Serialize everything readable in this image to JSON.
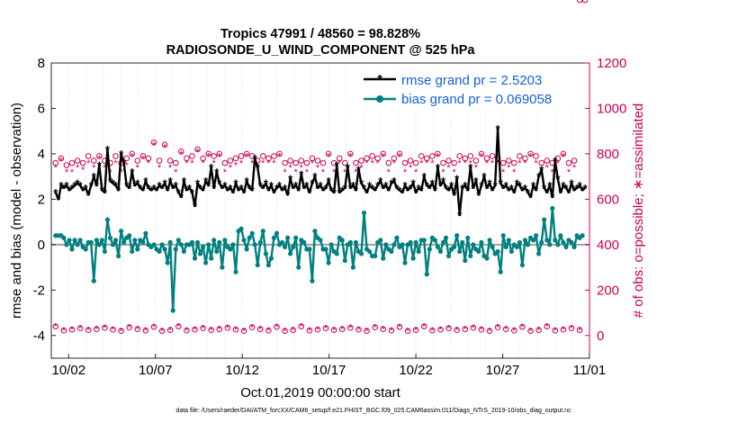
{
  "chart_data": {
    "type": "line",
    "title_line1": "Tropics 47991 / 48560 = 98.828%",
    "title_line2": "RADIOSONDE_U_WIND_COMPONENT @ 525 hPa",
    "xlabel": "Oct.01,2019 00:00:00 start",
    "ylabel_left": "rmse and bias (model - observation)",
    "ylabel_right": "# of obs: o=possible; ∗=assimilated",
    "footer": "data file: /Users/raeder/DAI/ATM_forcXX/CAM6_setup/f.e21.FHIST_BGC.f09_025.CAM6assim.011/Diags_NTrS_2019-10/obs_diag_output.nc",
    "x_range": [
      1,
      32
    ],
    "x_ticks": [
      {
        "v": 2,
        "label": "10/02"
      },
      {
        "v": 7,
        "label": "10/07"
      },
      {
        "v": 12,
        "label": "10/12"
      },
      {
        "v": 17,
        "label": "10/17"
      },
      {
        "v": 22,
        "label": "10/22"
      },
      {
        "v": 27,
        "label": "10/27"
      },
      {
        "v": 32,
        "label": "11/01"
      }
    ],
    "y_left_range": [
      -5,
      8
    ],
    "y_left_ticks": [
      -4,
      -2,
      0,
      2,
      4,
      6,
      8
    ],
    "y_right_range": [
      -100,
      1200
    ],
    "y_right_ticks": [
      0,
      200,
      400,
      600,
      800,
      1000,
      1200
    ],
    "legend": [
      {
        "label": "rmse grand pr = 2.5203",
        "color": "#000000"
      },
      {
        "label": "bias grand pr = 0.069058",
        "color": "#00807f"
      }
    ],
    "colors": {
      "rmse": "#000000",
      "bias": "#00807f",
      "obs": "#cc0052",
      "zero_line": "#a0a0a0",
      "legend_text": "#1660d8",
      "right_axis": "#cc0052"
    },
    "rmse": [
      2.3,
      2.0,
      2.6,
      2.5,
      2.6,
      2.4,
      2.5,
      2.6,
      2.7,
      2.6,
      2.4,
      2.5,
      2.2,
      2.6,
      3.0,
      2.6,
      3.5,
      2.4,
      2.3,
      4.2,
      2.8,
      2.7,
      2.6,
      2.4,
      4.0,
      3.6,
      2.6,
      2.5,
      3.2,
      2.6,
      2.7,
      2.5,
      2.4,
      2.8,
      2.5,
      2.4,
      2.5,
      2.4,
      2.6,
      2.5,
      2.7,
      2.4,
      2.8,
      2.5,
      2.6,
      2.3,
      2.1,
      2.8,
      2.4,
      2.5,
      2.3,
      1.7,
      2.7,
      2.5,
      2.4,
      2.8,
      2.6,
      3.4,
      2.5,
      3.2,
      2.7,
      2.5,
      2.6,
      2.4,
      2.5,
      2.3,
      2.7,
      2.4,
      2.5,
      2.3,
      2.8,
      2.5,
      2.4,
      3.8,
      3.4,
      2.6,
      2.5,
      2.7,
      2.4,
      2.6,
      2.3,
      2.5,
      2.6,
      2.4,
      2.5,
      2.2,
      2.9,
      2.5,
      2.6,
      2.4,
      3.1,
      2.5,
      2.6,
      2.3,
      2.7,
      3.0,
      2.5,
      2.6,
      2.4,
      2.5,
      2.8,
      2.4,
      2.3,
      3.5,
      2.3,
      2.4,
      2.5,
      3.4,
      2.5,
      2.6,
      2.4,
      3.3,
      2.7,
      2.5,
      2.3,
      2.6,
      2.5,
      2.4,
      2.6,
      2.8,
      2.5,
      2.6,
      2.4,
      2.7,
      2.8,
      2.5,
      2.4,
      2.3,
      2.6,
      2.4,
      2.5,
      2.7,
      2.3,
      2.5,
      2.4,
      3.0,
      2.6,
      2.5,
      2.7,
      2.4,
      3.4,
      2.6,
      2.8,
      2.5,
      2.4,
      2.6,
      2.2,
      2.9,
      1.3,
      2.5,
      2.6,
      2.4,
      3.4,
      2.5,
      2.8,
      2.2,
      2.6,
      3.0,
      2.5,
      2.7,
      2.4,
      2.6,
      5.1,
      2.7,
      2.5,
      2.6,
      2.4,
      2.5,
      2.3,
      2.7,
      2.6,
      2.4,
      2.5,
      2.3,
      2.1,
      2.6,
      2.4,
      3.0,
      3.3,
      2.5,
      2.3,
      2.6,
      2.1,
      3.7,
      2.9,
      2.3,
      2.6,
      2.5,
      2.3,
      2.7,
      2.4,
      2.5,
      2.6,
      2.4,
      2.5
    ],
    "bias": [
      0.4,
      0.4,
      0.4,
      0.3,
      0.0,
      0.2,
      -0.2,
      0.2,
      0.0,
      0.2,
      -0.1,
      -0.2,
      0.1,
      0.1,
      -1.6,
      0.2,
      0.0,
      0.2,
      -0.3,
      1.1,
      0.3,
      0.0,
      0.2,
      -0.5,
      0.6,
      0.1,
      0.3,
      0.4,
      -0.3,
      0.2,
      -0.2,
      0.2,
      0.1,
      0.5,
      0.0,
      -0.1,
      0.0,
      -0.2,
      -0.3,
      0.0,
      -0.2,
      -0.8,
      0.1,
      -2.9,
      -0.2,
      0.2,
      0.0,
      -0.3,
      0.0,
      0.0,
      0.1,
      -0.6,
      0.1,
      -0.4,
      -0.1,
      -0.8,
      0.0,
      -0.6,
      0.2,
      -0.3,
      0.1,
      -1.0,
      0.2,
      -0.1,
      -0.2,
      0.0,
      -1.2,
      0.6,
      0.7,
      0.2,
      -0.2,
      0.3,
      0.5,
      0.0,
      -0.9,
      0.1,
      0.6,
      -0.4,
      -0.9,
      -0.6,
      0.3,
      0.5,
      0.0,
      0.1,
      -0.1,
      0.3,
      -0.4,
      -0.1,
      0.3,
      -1.0,
      0.2,
      0.1,
      -0.2,
      -0.2,
      -1.6,
      0.6,
      0.3,
      0.2,
      -0.2,
      -0.2,
      -0.8,
      0.0,
      -0.3,
      -0.4,
      0.3,
      0.2,
      -0.7,
      0.0,
      0.1,
      -1.0,
      0.1,
      -0.3,
      -0.4,
      1.4,
      -0.2,
      -0.3,
      -0.5,
      -0.5,
      0.1,
      0.2,
      -0.6,
      0.0,
      -0.2,
      -0.3,
      0.0,
      0.3,
      -0.1,
      0.0,
      -0.8,
      0.0,
      0.1,
      -0.6,
      0.1,
      -0.3,
      0.2,
      0.2,
      -1.3,
      -0.2,
      0.3,
      0.2,
      -0.1,
      -0.3,
      0.1,
      0.3,
      -0.5,
      -0.2,
      -0.1,
      0.4,
      -0.3,
      0.1,
      -0.7,
      0.3,
      -0.5,
      0.0,
      -0.2,
      -0.3,
      0.1,
      -0.5,
      -0.6,
      0.2,
      -0.1,
      -0.4,
      -0.3,
      -1.2,
      0.4,
      -0.1,
      0.2,
      -0.3,
      0.0,
      -0.1,
      0.1,
      -0.9,
      0.2,
      0.0,
      0.3,
      0.2,
      0.4,
      -0.4,
      0.1,
      1.1,
      0.2,
      0.0,
      1.6,
      0.2,
      0.0,
      0.4,
      0.1,
      -0.1,
      0.2,
      0.1,
      -0.1,
      0.4,
      0.3,
      0.4
    ],
    "obs_possible": [
      760,
      740,
      780,
      770,
      750,
      780,
      760,
      790,
      770,
      740,
      760,
      800,
      790,
      750,
      770,
      760,
      790,
      800,
      770,
      780,
      760,
      840,
      790,
      770,
      760,
      790,
      780,
      760,
      800,
      780,
      770,
      750,
      790,
      760,
      780,
      800,
      850,
      790,
      770,
      800,
      840,
      780,
      770,
      790,
      760,
      800,
      810,
      790,
      780,
      760,
      790,
      800,
      820,
      790,
      780,
      770,
      800,
      860,
      790,
      770,
      800,
      780,
      760,
      790,
      770,
      800,
      780,
      760,
      790,
      780,
      800,
      760,
      790,
      780,
      770,
      760,
      790,
      800,
      780,
      760,
      790,
      770,
      800,
      780,
      760,
      790,
      770,
      780,
      760,
      800,
      770,
      780,
      760,
      790,
      780,
      760,
      770,
      790,
      760,
      780,
      800,
      770,
      760,
      790,
      780,
      770,
      760,
      790,
      800,
      780,
      760,
      790,
      770,
      800,
      780,
      760,
      790,
      770,
      780,
      760,
      800,
      770,
      760,
      790,
      780,
      770,
      800,
      780,
      760,
      790,
      770,
      780,
      760,
      800,
      790,
      770,
      780,
      760,
      790,
      770,
      800,
      780,
      760,
      790,
      770,
      780,
      760,
      800,
      790,
      770,
      780,
      760,
      790,
      780,
      770,
      760,
      800,
      790,
      780,
      760,
      790,
      770,
      780,
      800,
      760,
      790,
      770,
      780,
      760,
      800,
      790,
      770,
      780,
      760,
      800,
      770,
      790,
      780,
      760,
      800,
      770,
      780,
      760,
      790,
      780,
      770,
      800,
      790,
      760,
      780,
      770,
      790
    ],
    "obs_assimilated": [
      740,
      700,
      770,
      760,
      720,
      760,
      720,
      780,
      740,
      700,
      730,
      780,
      760,
      720,
      740,
      720,
      780,
      790,
      740,
      760,
      720,
      830,
      760,
      740,
      720,
      760,
      750,
      720,
      790,
      760,
      740,
      720,
      780,
      720,
      760,
      790,
      840,
      760,
      740,
      780,
      830,
      760,
      740,
      760,
      720,
      790,
      800,
      760,
      760,
      720,
      760,
      790,
      810,
      760,
      760,
      740,
      790,
      850,
      760,
      740,
      790,
      760,
      720,
      760,
      740,
      790,
      750,
      720,
      760,
      760,
      790,
      720,
      760,
      760,
      740,
      720,
      760,
      790,
      760,
      720,
      760,
      740,
      790,
      760,
      720,
      760,
      740,
      760,
      720,
      790,
      740,
      760,
      720,
      760,
      760,
      720,
      740,
      760,
      720,
      760,
      790,
      740,
      720,
      760,
      760,
      740,
      720,
      760,
      790,
      760,
      720,
      760,
      740,
      790,
      760,
      720,
      760,
      740,
      760,
      720,
      790,
      740,
      720,
      760,
      760,
      740,
      790,
      760,
      720,
      760,
      740,
      760,
      720,
      790,
      760,
      740,
      760,
      720,
      760,
      740,
      790,
      760,
      720,
      760,
      740,
      760,
      720,
      790,
      760,
      740,
      760,
      720,
      760,
      760,
      740,
      720,
      790,
      760,
      760,
      720,
      760,
      740,
      760,
      790,
      720,
      760,
      740,
      760,
      720,
      790,
      760,
      740,
      760,
      720,
      790,
      740,
      760,
      760,
      720,
      790,
      740,
      760,
      720,
      760,
      760,
      740,
      790,
      760,
      720,
      760,
      740,
      760
    ]
  }
}
